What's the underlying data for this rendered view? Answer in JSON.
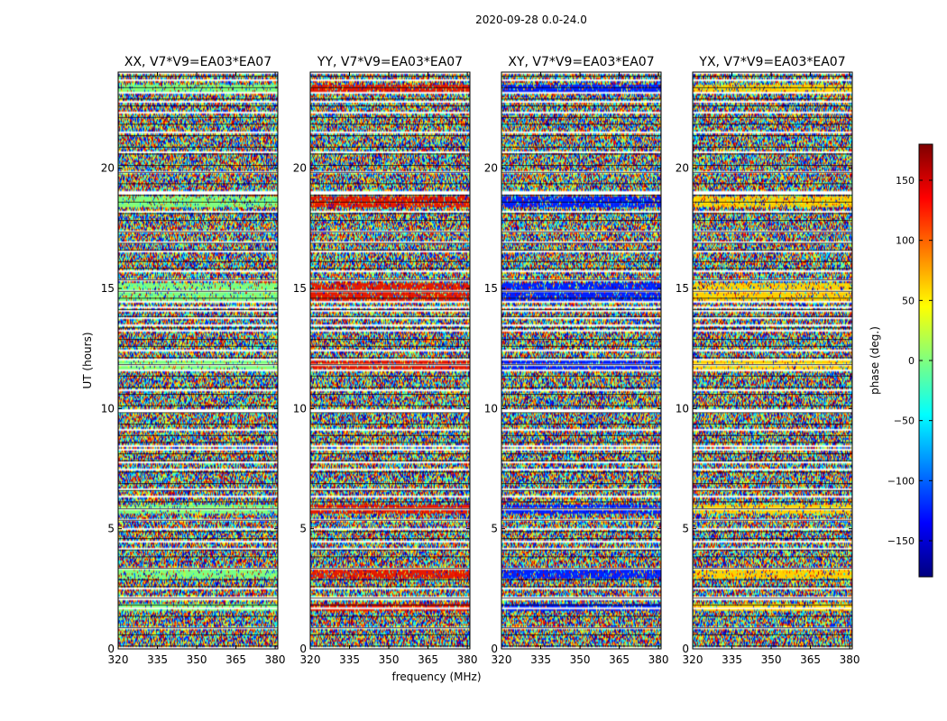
{
  "figure_title": "2020-09-28 0.0-24.0",
  "chart_data": {
    "type": "heatmap",
    "title": "2020-09-28 0.0-24.0",
    "xlabel": "frequency (MHz)",
    "ylabel": "UT (hours)",
    "xlim": [
      320,
      381
    ],
    "ylim": [
      0,
      24
    ],
    "xticks": [
      320,
      335,
      350,
      365,
      380
    ],
    "yticks": [
      0,
      5,
      10,
      15,
      20
    ],
    "panels": [
      {
        "title": "XX, V7*V9=EA03*EA07",
        "band_color": "#7fff7f"
      },
      {
        "title": "YY, V7*V9=EA03*EA07",
        "band_color": "#e41a00"
      },
      {
        "title": "XY, V7*V9=EA03*EA07",
        "band_color": "#0020ff"
      },
      {
        "title": "YX, V7*V9=EA03*EA07",
        "band_color": "#ffd200"
      }
    ],
    "flagged_rows_hours": [
      2.0,
      2.1,
      4.4,
      5.3,
      6.3,
      7.7,
      8.4,
      9.8,
      11.8,
      12.0,
      13.4,
      13.7,
      14.2,
      14.4,
      15.3,
      16.9,
      18.9,
      20.6,
      22.7,
      23.6
    ],
    "bright_bands_hours": [
      {
        "start": 1.6,
        "end": 1.9
      },
      {
        "start": 2.9,
        "end": 3.3
      },
      {
        "start": 5.6,
        "end": 6.0
      },
      {
        "start": 11.6,
        "end": 12.1
      },
      {
        "start": 14.4,
        "end": 15.2
      },
      {
        "start": 18.4,
        "end": 18.8
      },
      {
        "start": 23.1,
        "end": 23.5
      }
    ],
    "colorbar": {
      "label": "phase (deg.)",
      "range": [
        -180,
        180
      ],
      "ticks": [
        -150,
        -100,
        -50,
        0,
        50,
        100,
        150
      ],
      "tick_labels": [
        "−150",
        "−100",
        "−50",
        "0",
        "50",
        "100",
        "150"
      ],
      "colors": [
        "#00007f",
        "#0000ff",
        "#007fff",
        "#00ffff",
        "#7fff7f",
        "#ffff00",
        "#ff7f00",
        "#ff0000",
        "#7f0000"
      ]
    }
  }
}
